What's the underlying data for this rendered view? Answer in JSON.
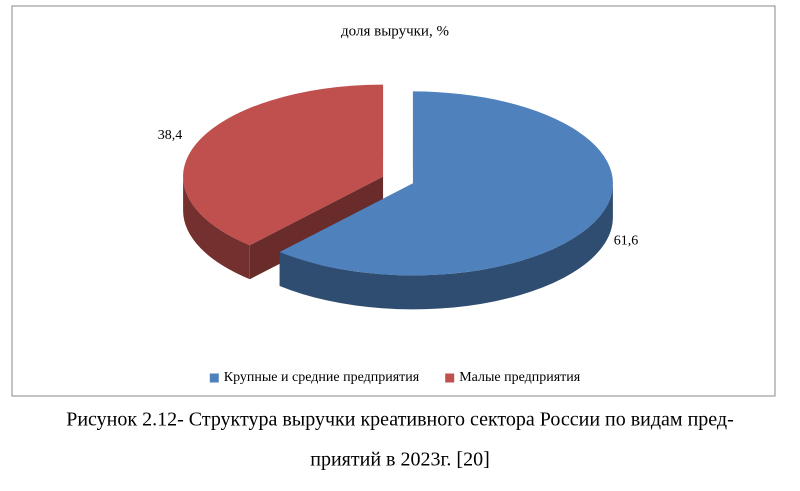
{
  "chart_data": {
    "type": "pie",
    "title": "доля выручки, %",
    "categories": [
      "Крупные и средние предприятия",
      "Малые предприятия"
    ],
    "values": [
      61.6,
      38.4
    ],
    "value_labels": [
      "61,6",
      "38,4"
    ],
    "colors": [
      "#4f81bd",
      "#c0504d"
    ],
    "legend": "bottom"
  },
  "caption": [
    "Рисунок 2.12- Структура выручки креативного сектора России по видам пред-",
    "приятий в 2023г. [20]"
  ]
}
